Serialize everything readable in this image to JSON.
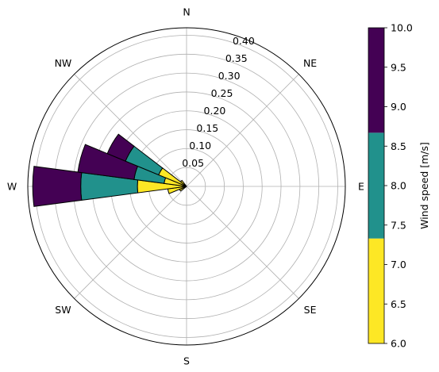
{
  "chart_data": {
    "type": "windrose",
    "directions": [
      "N",
      "NE",
      "E",
      "SE",
      "S",
      "SW",
      "W",
      "NW"
    ],
    "radial_ticks": [
      "0.05",
      "0.10",
      "0.15",
      "0.20",
      "0.25",
      "0.30",
      "0.35",
      "0.40"
    ],
    "rmax": 0.42,
    "radial_tick_angle_deg": 22.5,
    "sector_width_deg": 15,
    "bin_colors": [
      "#fde725",
      "#21918c",
      "#440154"
    ],
    "bins": [
      {
        "range": [
          6.0,
          7.33
        ]
      },
      {
        "range": [
          7.33,
          8.67
        ]
      },
      {
        "range": [
          8.67,
          10.0
        ]
      }
    ],
    "sectors": [
      {
        "direction_deg": 240,
        "values": [
          0.02,
          0.0,
          0.0
        ]
      },
      {
        "direction_deg": 255,
        "values": [
          0.05,
          0.0,
          0.0
        ]
      },
      {
        "direction_deg": 270,
        "values": [
          0.13,
          0.15,
          0.127
        ]
      },
      {
        "direction_deg": 285,
        "values": [
          0.06,
          0.08,
          0.15
        ]
      },
      {
        "direction_deg": 300,
        "values": [
          0.08,
          0.095,
          0.052
        ]
      },
      {
        "direction_deg": 315,
        "values": [
          0.02,
          0.0,
          0.0
        ]
      }
    ],
    "colorbar": {
      "label": "Wind speed [m/s]",
      "ticks": [
        "6.0",
        "6.5",
        "7.0",
        "7.5",
        "8.0",
        "8.5",
        "9.0",
        "9.5",
        "10.0"
      ],
      "min": 6.0,
      "max": 10.0
    },
    "grid": true
  }
}
